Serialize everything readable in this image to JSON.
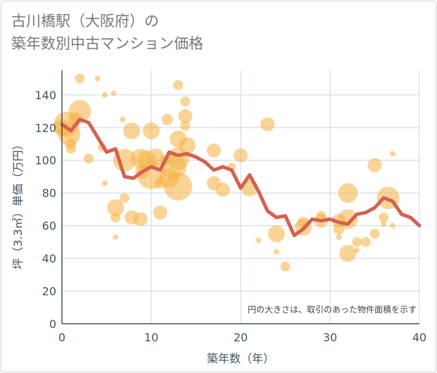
{
  "title_line1": "古川橋駅（大阪府）の",
  "title_line2": "築年数別中古マンション価格",
  "chart_data": {
    "type": "scatter",
    "xlabel": "築年数（年）",
    "ylabel": "坪（3.3㎡）単価（万円）",
    "xlim": [
      0,
      40
    ],
    "ylim": [
      0,
      155
    ],
    "xticks": [
      "0",
      "10",
      "20",
      "30",
      "40"
    ],
    "yticks": [
      "0",
      "20",
      "40",
      "60",
      "80",
      "100",
      "120",
      "140"
    ],
    "grid": true,
    "note": "円の大きさは、取引のあった物件面積を示す",
    "colors": {
      "bubble": "#f5b041",
      "line": "#d4614f",
      "grid": "#c9d6e3",
      "axis": "#3d5466"
    },
    "average_line": {
      "x": [
        0,
        1,
        2,
        3,
        4,
        5,
        6,
        7,
        8,
        9,
        10,
        11,
        12,
        13,
        14,
        15,
        16,
        17,
        18,
        19,
        20,
        21,
        22,
        23,
        24,
        25,
        26,
        27,
        28,
        29,
        30,
        31,
        32,
        33,
        34,
        35,
        36,
        37,
        38,
        39,
        40
      ],
      "y": [
        122,
        118,
        125,
        123,
        114,
        105,
        107,
        90,
        89,
        93,
        96,
        94,
        105,
        103,
        104,
        102,
        99,
        94,
        96,
        94,
        83,
        91,
        81,
        69,
        65,
        66,
        54,
        58,
        64,
        63,
        64,
        62,
        61,
        67,
        68,
        71,
        77,
        75,
        67,
        65,
        60
      ]
    },
    "bubbles": [
      {
        "x": 0,
        "y": 120,
        "s": 12
      },
      {
        "x": 0.5,
        "y": 122,
        "s": 18
      },
      {
        "x": 0.8,
        "y": 116,
        "s": 16
      },
      {
        "x": 1,
        "y": 110,
        "s": 8
      },
      {
        "x": 1,
        "y": 107,
        "s": 7
      },
      {
        "x": 1.5,
        "y": 125,
        "s": 10
      },
      {
        "x": 2,
        "y": 150,
        "s": 7
      },
      {
        "x": 2,
        "y": 130,
        "s": 16
      },
      {
        "x": 3,
        "y": 101,
        "s": 7
      },
      {
        "x": 4,
        "y": 150,
        "s": 4
      },
      {
        "x": 4.5,
        "y": 108,
        "s": 6
      },
      {
        "x": 4.8,
        "y": 140,
        "s": 4
      },
      {
        "x": 4.8,
        "y": 86,
        "s": 4
      },
      {
        "x": 5.8,
        "y": 141,
        "s": 4
      },
      {
        "x": 6,
        "y": 71,
        "s": 12
      },
      {
        "x": 6,
        "y": 65,
        "s": 7
      },
      {
        "x": 6,
        "y": 53,
        "s": 4
      },
      {
        "x": 6.8,
        "y": 125,
        "s": 4
      },
      {
        "x": 7,
        "y": 100,
        "s": 16
      },
      {
        "x": 7,
        "y": 77,
        "s": 7
      },
      {
        "x": 7.8,
        "y": 118,
        "s": 12
      },
      {
        "x": 7.8,
        "y": 65,
        "s": 10
      },
      {
        "x": 8.8,
        "y": 101,
        "s": 14
      },
      {
        "x": 8.8,
        "y": 64,
        "s": 10
      },
      {
        "x": 9,
        "y": 93,
        "s": 10
      },
      {
        "x": 9.5,
        "y": 100,
        "s": 14
      },
      {
        "x": 10,
        "y": 118,
        "s": 12
      },
      {
        "x": 10,
        "y": 91,
        "s": 20
      },
      {
        "x": 10.5,
        "y": 102,
        "s": 12
      },
      {
        "x": 11,
        "y": 86,
        "s": 8
      },
      {
        "x": 11,
        "y": 68,
        "s": 10
      },
      {
        "x": 11.5,
        "y": 100,
        "s": 8
      },
      {
        "x": 11.8,
        "y": 125,
        "s": 8
      },
      {
        "x": 12,
        "y": 89,
        "s": 14
      },
      {
        "x": 12.5,
        "y": 96,
        "s": 18
      },
      {
        "x": 13,
        "y": 146,
        "s": 7
      },
      {
        "x": 13,
        "y": 113,
        "s": 12
      },
      {
        "x": 13,
        "y": 101,
        "s": 16
      },
      {
        "x": 13,
        "y": 84,
        "s": 20
      },
      {
        "x": 13.8,
        "y": 136,
        "s": 7
      },
      {
        "x": 13.8,
        "y": 127,
        "s": 10
      },
      {
        "x": 13.8,
        "y": 121,
        "s": 7
      },
      {
        "x": 14,
        "y": 109,
        "s": 12
      },
      {
        "x": 17,
        "y": 106,
        "s": 10
      },
      {
        "x": 17,
        "y": 86,
        "s": 10
      },
      {
        "x": 18,
        "y": 82,
        "s": 10
      },
      {
        "x": 19,
        "y": 96,
        "s": 6
      },
      {
        "x": 20,
        "y": 103,
        "s": 10
      },
      {
        "x": 21,
        "y": 83,
        "s": 12
      },
      {
        "x": 22,
        "y": 51,
        "s": 4
      },
      {
        "x": 23,
        "y": 122,
        "s": 10
      },
      {
        "x": 24,
        "y": 55,
        "s": 12
      },
      {
        "x": 24,
        "y": 44,
        "s": 4
      },
      {
        "x": 25,
        "y": 35,
        "s": 7
      },
      {
        "x": 27,
        "y": 62,
        "s": 8
      },
      {
        "x": 27,
        "y": 59,
        "s": 12
      },
      {
        "x": 29,
        "y": 66,
        "s": 7
      },
      {
        "x": 29,
        "y": 63,
        "s": 10
      },
      {
        "x": 31,
        "y": 63,
        "s": 10
      },
      {
        "x": 31,
        "y": 58,
        "s": 8
      },
      {
        "x": 31,
        "y": 53,
        "s": 4
      },
      {
        "x": 32,
        "y": 80,
        "s": 14
      },
      {
        "x": 32,
        "y": 64,
        "s": 14
      },
      {
        "x": 32,
        "y": 43,
        "s": 12
      },
      {
        "x": 33,
        "y": 50,
        "s": 7
      },
      {
        "x": 33,
        "y": 45,
        "s": 4
      },
      {
        "x": 34,
        "y": 50,
        "s": 7
      },
      {
        "x": 35,
        "y": 97,
        "s": 10
      },
      {
        "x": 35,
        "y": 55,
        "s": 7
      },
      {
        "x": 36,
        "y": 65,
        "s": 7
      },
      {
        "x": 36,
        "y": 61,
        "s": 4
      },
      {
        "x": 36.5,
        "y": 77,
        "s": 16
      },
      {
        "x": 37,
        "y": 104,
        "s": 4
      },
      {
        "x": 37,
        "y": 60,
        "s": 4
      }
    ]
  }
}
